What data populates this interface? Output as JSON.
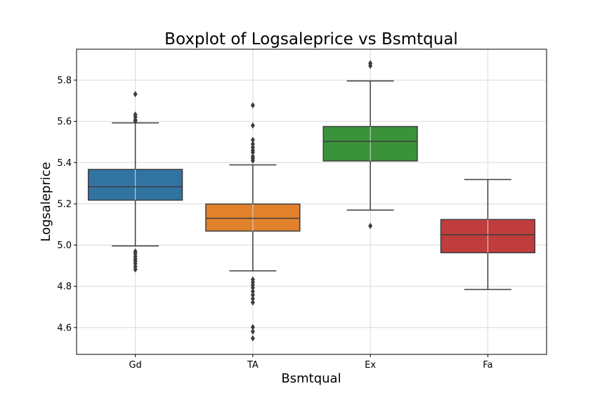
{
  "chart_data": {
    "type": "boxplot",
    "title": "Boxplot of Logsaleprice vs Bsmtqual",
    "xlabel": "Bsmtqual",
    "ylabel": "Logsaleprice",
    "ylim": [
      4.47,
      5.95
    ],
    "yticks": [
      "4.6",
      "4.8",
      "5.0",
      "5.2",
      "5.4",
      "5.6",
      "5.8"
    ],
    "grid": true,
    "categories": [
      "Gd",
      "TA",
      "Ex",
      "Fa"
    ],
    "boxes": [
      {
        "category": "Gd",
        "color": "#3274a1",
        "whisker_low": 4.996,
        "q1": 5.218,
        "median": 5.283,
        "q3": 5.367,
        "whisker_high": 5.593,
        "outliers": [
          5.732,
          5.633,
          5.621,
          5.607,
          5.601,
          4.969,
          4.959,
          4.945,
          4.932,
          4.921,
          4.91,
          4.896,
          4.882
        ]
      },
      {
        "category": "TA",
        "color": "#e1812c",
        "whisker_low": 4.875,
        "q1": 5.068,
        "median": 5.13,
        "q3": 5.199,
        "whisker_high": 5.389,
        "outliers": [
          5.678,
          5.58,
          5.51,
          5.49,
          5.474,
          5.46,
          5.45,
          5.43,
          5.42,
          5.41,
          4.833,
          4.82,
          4.807,
          4.793,
          4.775,
          4.758,
          4.74,
          4.722,
          4.602,
          4.581,
          4.548
        ]
      },
      {
        "category": "Ex",
        "color": "#3a923a",
        "whisker_low": 5.17,
        "q1": 5.408,
        "median": 5.503,
        "q3": 5.575,
        "whisker_high": 5.796,
        "outliers": [
          5.882,
          5.87,
          5.093
        ]
      },
      {
        "category": "Fa",
        "color": "#c03d3e",
        "whisker_low": 4.785,
        "q1": 4.963,
        "median": 5.05,
        "q3": 5.124,
        "whisker_high": 5.318,
        "outliers": []
      }
    ]
  }
}
